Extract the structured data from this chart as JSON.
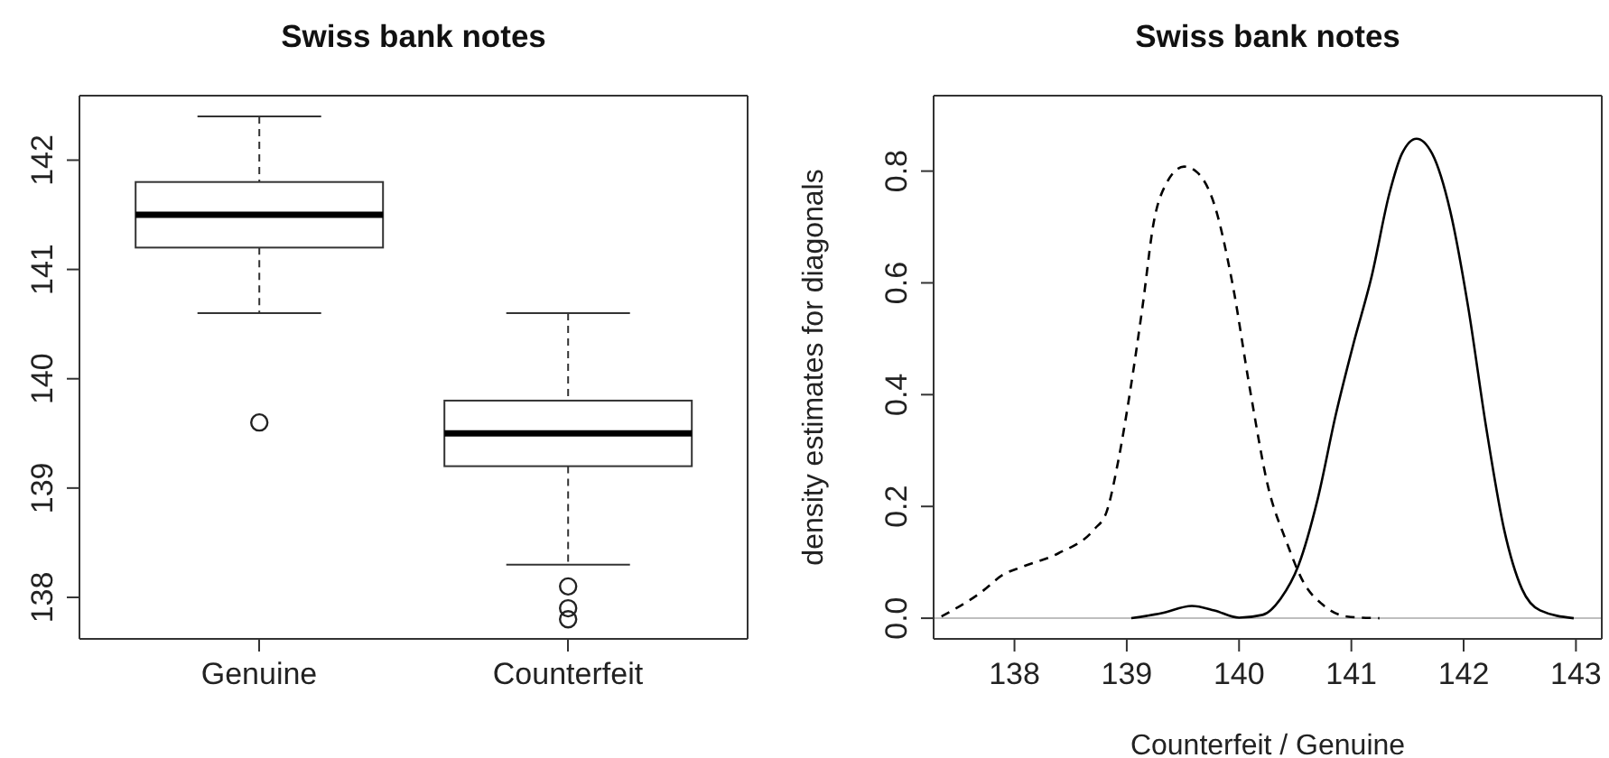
{
  "chart_data": [
    {
      "type": "box",
      "title": "Swiss bank notes",
      "categories": [
        "Genuine",
        "Counterfeit"
      ],
      "ylim": [
        137.62,
        142.59
      ],
      "yticks": [
        138,
        139,
        140,
        141,
        142
      ],
      "boxes": [
        {
          "low": 140.6,
          "q1": 141.2,
          "median": 141.5,
          "q3": 141.8,
          "high": 142.4,
          "outliers": [
            139.6
          ]
        },
        {
          "low": 138.3,
          "q1": 139.2,
          "median": 139.5,
          "q3": 139.8,
          "high": 140.6,
          "outliers": [
            138.1,
            137.9,
            137.8
          ]
        }
      ]
    },
    {
      "type": "line",
      "title": "Swiss bank notes",
      "xlabel": "Counterfeit / Genuine",
      "ylabel": "density estimates for diagonals",
      "xlim": [
        137.28,
        143.23
      ],
      "xticks": [
        138,
        139,
        140,
        141,
        142,
        143
      ],
      "ylim": [
        -0.037,
        0.935
      ],
      "yticks": [
        {
          "value": 0,
          "label": "0.0"
        },
        0.2,
        0.4,
        0.6,
        0.8
      ],
      "ref_lines": [
        {
          "axis": "y",
          "value": 0,
          "color": "#bebebe"
        }
      ],
      "series": [
        {
          "color": "#000000",
          "line_style": "dashed",
          "x": [
            137.35,
            137.7,
            137.9,
            138.07,
            138.39,
            138.71,
            138.82,
            138.92,
            139.03,
            139.14,
            139.24,
            139.35,
            139.51,
            139.62,
            139.78,
            139.94,
            140.1,
            140.26,
            140.42,
            140.58,
            140.74,
            140.96,
            141.25
          ],
          "values": [
            0.003,
            0.046,
            0.078,
            0.092,
            0.116,
            0.159,
            0.19,
            0.277,
            0.406,
            0.557,
            0.708,
            0.777,
            0.808,
            0.799,
            0.74,
            0.6,
            0.406,
            0.234,
            0.138,
            0.062,
            0.025,
            0.003,
            0
          ]
        },
        {
          "color": "#000000",
          "line_style": "solid",
          "x": [
            139.04,
            139.31,
            139.58,
            139.78,
            140,
            140.21,
            140.37,
            140.53,
            140.7,
            140.86,
            141.02,
            141.18,
            141.34,
            141.45,
            141.58,
            141.72,
            141.88,
            142.04,
            142.2,
            142.36,
            142.52,
            142.68,
            142.98
          ],
          "values": [
            0,
            0.009,
            0.022,
            0.014,
            0.001,
            0.006,
            0.035,
            0.095,
            0.213,
            0.363,
            0.492,
            0.611,
            0.761,
            0.831,
            0.858,
            0.831,
            0.729,
            0.557,
            0.342,
            0.159,
            0.052,
            0.014,
            0
          ]
        }
      ]
    }
  ]
}
